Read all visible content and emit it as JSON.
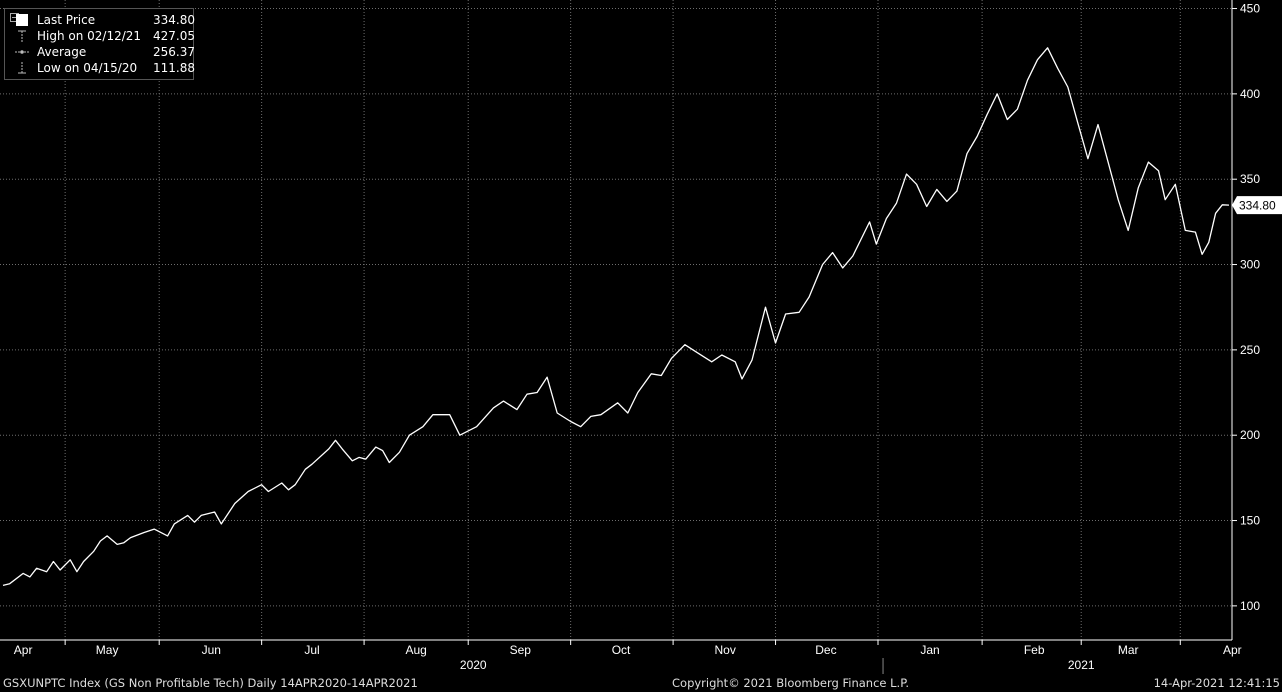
{
  "legend": {
    "items": [
      {
        "label": "Last Price",
        "value": "334.80",
        "icon": "filled-square-icon"
      },
      {
        "label": "High on 02/12/21",
        "value": "427.05",
        "icon": "high-marker-icon"
      },
      {
        "label": "Average",
        "value": "256.37",
        "icon": "average-line-icon"
      },
      {
        "label": "Low on 04/15/20",
        "value": "111.88",
        "icon": "low-marker-icon"
      }
    ]
  },
  "footer": {
    "left": "GSXUNPTC Index (GS Non Profitable Tech)  Daily 14APR2020-14APR2021",
    "center": "Copyright© 2021 Bloomberg Finance L.P.",
    "right": "14-Apr-2021 12:41:15"
  },
  "colors": {
    "background": "#000000",
    "line": "#ffffff",
    "grid": "#6e6e6e",
    "axis": "#ffffff"
  },
  "chart_data": {
    "type": "line",
    "title": "",
    "xlabel": "",
    "ylabel": "",
    "ylim": [
      80,
      455
    ],
    "xlim": [
      "2020-04-14",
      "2021-04-14"
    ],
    "grid": true,
    "legend_position": "top-left",
    "y_ticks": [
      100,
      150,
      200,
      250,
      300,
      350,
      400,
      450
    ],
    "last_value_label": "334.80",
    "x_ticks": [
      {
        "label": "Apr",
        "date": "2020-04-20"
      },
      {
        "label": "May",
        "date": "2020-05-15"
      },
      {
        "label": "Jun",
        "date": "2020-06-15"
      },
      {
        "label": "Jul",
        "date": "2020-07-15"
      },
      {
        "label": "Aug",
        "date": "2020-08-15"
      },
      {
        "label": "Sep",
        "date": "2020-09-15"
      },
      {
        "label": "Oct",
        "date": "2020-10-15"
      },
      {
        "label": "Nov",
        "date": "2020-11-15"
      },
      {
        "label": "Dec",
        "date": "2020-12-15"
      },
      {
        "label": "Jan",
        "date": "2021-01-15"
      },
      {
        "label": "Feb",
        "date": "2021-02-15"
      },
      {
        "label": "Mar",
        "date": "2021-03-15"
      },
      {
        "label": "Apr",
        "date": "2021-04-15"
      }
    ],
    "year_labels": [
      {
        "label": "2020",
        "date": "2020-09-01"
      },
      {
        "label": "2021",
        "date": "2021-03-01"
      }
    ],
    "series": [
      {
        "name": "Last Price",
        "points": [
          [
            "2020-04-14",
            112
          ],
          [
            "2020-04-16",
            113
          ],
          [
            "2020-04-20",
            119
          ],
          [
            "2020-04-22",
            117
          ],
          [
            "2020-04-24",
            122
          ],
          [
            "2020-04-27",
            120
          ],
          [
            "2020-04-29",
            126
          ],
          [
            "2020-05-01",
            121
          ],
          [
            "2020-05-04",
            127
          ],
          [
            "2020-05-06",
            120
          ],
          [
            "2020-05-08",
            126
          ],
          [
            "2020-05-11",
            132
          ],
          [
            "2020-05-13",
            138
          ],
          [
            "2020-05-15",
            141
          ],
          [
            "2020-05-18",
            136
          ],
          [
            "2020-05-20",
            137
          ],
          [
            "2020-05-22",
            140
          ],
          [
            "2020-05-26",
            143
          ],
          [
            "2020-05-29",
            145
          ],
          [
            "2020-06-02",
            141
          ],
          [
            "2020-06-04",
            148
          ],
          [
            "2020-06-08",
            153
          ],
          [
            "2020-06-10",
            149
          ],
          [
            "2020-06-12",
            153
          ],
          [
            "2020-06-16",
            155
          ],
          [
            "2020-06-18",
            148
          ],
          [
            "2020-06-22",
            160
          ],
          [
            "2020-06-26",
            167
          ],
          [
            "2020-06-30",
            171
          ],
          [
            "2020-07-02",
            167
          ],
          [
            "2020-07-06",
            172
          ],
          [
            "2020-07-08",
            168
          ],
          [
            "2020-07-10",
            171
          ],
          [
            "2020-07-13",
            180
          ],
          [
            "2020-07-15",
            183
          ],
          [
            "2020-07-20",
            192
          ],
          [
            "2020-07-22",
            197
          ],
          [
            "2020-07-24",
            192
          ],
          [
            "2020-07-27",
            185
          ],
          [
            "2020-07-29",
            187
          ],
          [
            "2020-07-31",
            186
          ],
          [
            "2020-08-03",
            193
          ],
          [
            "2020-08-05",
            191
          ],
          [
            "2020-08-07",
            184
          ],
          [
            "2020-08-10",
            190
          ],
          [
            "2020-08-13",
            200
          ],
          [
            "2020-08-17",
            205
          ],
          [
            "2020-08-20",
            212
          ],
          [
            "2020-08-25",
            212
          ],
          [
            "2020-08-28",
            200
          ],
          [
            "2020-09-02",
            205
          ],
          [
            "2020-09-07",
            216
          ],
          [
            "2020-09-10",
            220
          ],
          [
            "2020-09-14",
            215
          ],
          [
            "2020-09-17",
            224
          ],
          [
            "2020-09-20",
            225
          ],
          [
            "2020-09-23",
            234
          ],
          [
            "2020-09-26",
            213
          ],
          [
            "2020-09-30",
            208
          ],
          [
            "2020-10-03",
            205
          ],
          [
            "2020-10-06",
            211
          ],
          [
            "2020-10-09",
            212
          ],
          [
            "2020-10-14",
            219
          ],
          [
            "2020-10-17",
            213
          ],
          [
            "2020-10-20",
            225
          ],
          [
            "2020-10-24",
            236
          ],
          [
            "2020-10-27",
            235
          ],
          [
            "2020-10-30",
            245
          ],
          [
            "2020-11-03",
            253
          ],
          [
            "2020-11-07",
            248
          ],
          [
            "2020-11-11",
            243
          ],
          [
            "2020-11-14",
            247
          ],
          [
            "2020-11-18",
            243
          ],
          [
            "2020-11-20",
            233
          ],
          [
            "2020-11-23",
            244
          ],
          [
            "2020-11-27",
            275
          ],
          [
            "2020-11-30",
            254
          ],
          [
            "2020-12-03",
            271
          ],
          [
            "2020-12-07",
            272
          ],
          [
            "2020-12-10",
            281
          ],
          [
            "2020-12-14",
            300
          ],
          [
            "2020-12-17",
            307
          ],
          [
            "2020-12-20",
            298
          ],
          [
            "2020-12-23",
            305
          ],
          [
            "2020-12-28",
            325
          ],
          [
            "2020-12-30",
            312
          ],
          [
            "2021-01-02",
            327
          ],
          [
            "2021-01-05",
            336
          ],
          [
            "2021-01-08",
            353
          ],
          [
            "2021-01-11",
            347
          ],
          [
            "2021-01-14",
            334
          ],
          [
            "2021-01-17",
            344
          ],
          [
            "2021-01-20",
            337
          ],
          [
            "2021-01-23",
            343
          ],
          [
            "2021-01-26",
            365
          ],
          [
            "2021-01-29",
            375
          ],
          [
            "2021-02-01",
            388
          ],
          [
            "2021-02-04",
            400
          ],
          [
            "2021-02-07",
            385
          ],
          [
            "2021-02-10",
            391
          ],
          [
            "2021-02-13",
            408
          ],
          [
            "2021-02-16",
            420
          ],
          [
            "2021-02-19",
            427
          ],
          [
            "2021-02-22",
            415
          ],
          [
            "2021-02-25",
            404
          ],
          [
            "2021-02-28",
            383
          ],
          [
            "2021-03-03",
            362
          ],
          [
            "2021-03-06",
            382
          ],
          [
            "2021-03-09",
            360
          ],
          [
            "2021-03-12",
            338
          ],
          [
            "2021-03-15",
            320
          ],
          [
            "2021-03-18",
            345
          ],
          [
            "2021-03-21",
            360
          ],
          [
            "2021-03-24",
            355
          ],
          [
            "2021-03-26",
            338
          ],
          [
            "2021-03-29",
            347
          ],
          [
            "2021-04-01",
            320
          ],
          [
            "2021-04-04",
            319
          ],
          [
            "2021-04-06",
            306
          ],
          [
            "2021-04-08",
            313
          ],
          [
            "2021-04-10",
            330
          ],
          [
            "2021-04-12",
            335
          ],
          [
            "2021-04-14",
            334.8
          ]
        ]
      }
    ]
  }
}
